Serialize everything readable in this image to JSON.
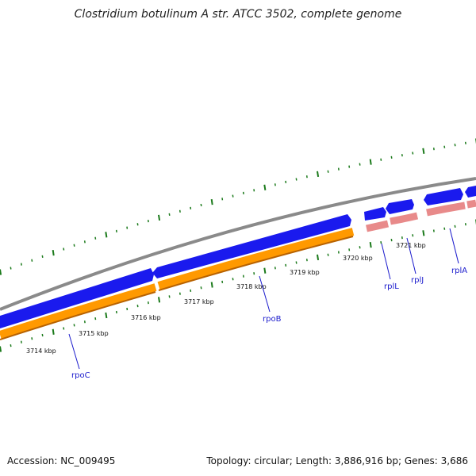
{
  "title": "Clostridium botulinum A str. ATCC 3502, complete genome",
  "accession_text": "Accession: NC_009495",
  "summary_text": "Topology: circular; Length: 3,886,916 bp; Genes: 3,686",
  "colors": {
    "backbone": "#8a8a8a",
    "forward_gene": "#1a1aee",
    "forward_gene_light": "#6d6dff",
    "cds_orange": "#ff9900",
    "cds_orange_dark": "#b86200",
    "rna_pink": "#e88a8a",
    "rna_pink_dark": "#b05a5a",
    "tick_green": "#1b7a1b",
    "label_blue": "#1a1acc"
  },
  "tick_labels": [
    "3714 kbp",
    "3715 kbp",
    "3716 kbp",
    "3717 kbp",
    "3718 kbp",
    "3719 kbp",
    "3720 kbp",
    "3721 kbp"
  ],
  "genes": [
    {
      "label": "rpoC"
    },
    {
      "label": "rpoB"
    },
    {
      "label": "rplL"
    },
    {
      "label": "rplJ"
    },
    {
      "label": "rplA"
    }
  ]
}
